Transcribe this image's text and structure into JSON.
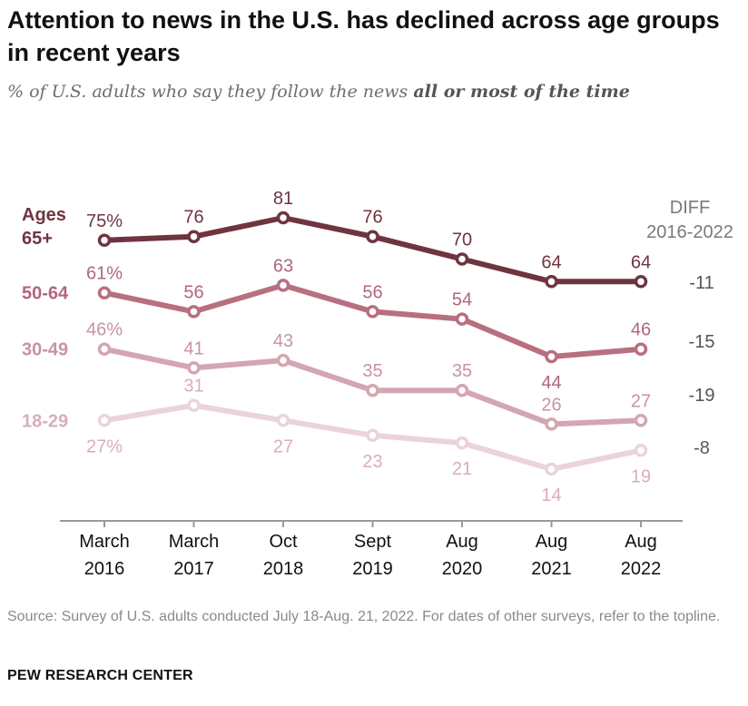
{
  "header": {
    "title": "Attention to news in the U.S. has declined across age groups in recent years",
    "subtitle_prefix": "% of U.S. adults who say they follow the news ",
    "subtitle_emphasis": "all or most of the time"
  },
  "footer": {
    "source": "Source: Survey of U.S. adults conducted July 18-Aug. 21, 2022. For dates of other surveys, refer to the topline.",
    "org": "PEW RESEARCH CENTER"
  },
  "chart_data": {
    "type": "line",
    "title": "Attention to news in the U.S. has declined across age groups in recent years",
    "ylabel": "% of U.S. adults who say they follow the news all or most of the time",
    "xlabel": "",
    "ylim": [
      10,
      85
    ],
    "grid": false,
    "categories": [
      [
        "March",
        "2016"
      ],
      [
        "March",
        "2017"
      ],
      [
        "Oct",
        "2018"
      ],
      [
        "Sept",
        "2019"
      ],
      [
        "Aug",
        "2020"
      ],
      [
        "Aug",
        "2021"
      ],
      [
        "Aug",
        "2022"
      ]
    ],
    "diff_header": [
      "DIFF",
      "2016-2022"
    ],
    "series": [
      {
        "name": "Ages 65+",
        "label_lines": [
          "Ages",
          "65+"
        ],
        "values": [
          75,
          76,
          81,
          76,
          70,
          64,
          64
        ],
        "labels": [
          "75%",
          "76",
          "81",
          "76",
          "70",
          "64",
          "64"
        ],
        "diff": "-11",
        "color": "#6e3540",
        "text_color": "#6e3540",
        "fill": "#ffffff"
      },
      {
        "name": "50-64",
        "label_lines": [
          "50-64"
        ],
        "values": [
          61,
          56,
          63,
          56,
          54,
          44,
          46
        ],
        "labels": [
          "61%",
          "56",
          "63",
          "56",
          "54",
          "44",
          "46"
        ],
        "diff": "-15",
        "color": "#b86f80",
        "text_color": "#b0677a",
        "fill": "#ffffff"
      },
      {
        "name": "30-49",
        "label_lines": [
          "30-49"
        ],
        "values": [
          46,
          41,
          43,
          35,
          35,
          26,
          27
        ],
        "labels": [
          "46%",
          "41",
          "43",
          "35",
          "35",
          "26",
          "27"
        ],
        "diff": "-19",
        "color": "#d4a6b1",
        "text_color": "#c9939f",
        "fill": "#ffffff"
      },
      {
        "name": "18-29",
        "label_lines": [
          "18-29"
        ],
        "values": [
          27,
          31,
          27,
          23,
          21,
          14,
          19
        ],
        "labels": [
          "27%",
          "31",
          "27",
          "23",
          "21",
          "14",
          "19"
        ],
        "diff": "-8",
        "color": "#ead4d9",
        "text_color": "#d9aeb8",
        "fill": "#ffffff"
      }
    ]
  }
}
